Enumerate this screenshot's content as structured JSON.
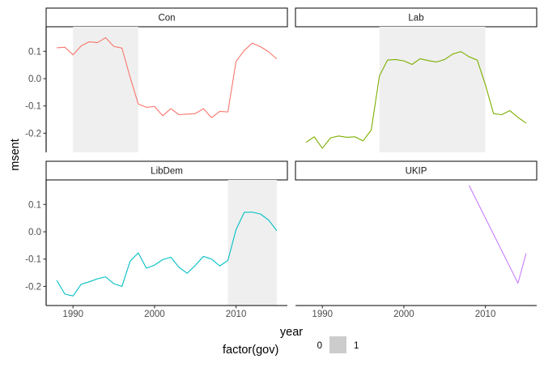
{
  "chart_data": {
    "type": "line",
    "xlabel": "year",
    "ylabel": "msent",
    "xlim": [
      1986.7,
      2016.3
    ],
    "ylim": [
      -0.27,
      0.19
    ],
    "x_ticks": [
      1990,
      2000,
      2010
    ],
    "x_tick_labels": [
      "1990",
      "2000",
      "2010"
    ],
    "y_ticks": [
      0.1,
      0.0,
      -0.1,
      -0.2
    ],
    "y_tick_labels": [
      "0.1",
      "0.0",
      "-0.1",
      "-0.2"
    ],
    "grid": false,
    "legend": {
      "title": "factor(gov)",
      "position": "bottom",
      "entries": [
        {
          "label": "0",
          "color": "#ffffff"
        },
        {
          "label": "1",
          "color": "#cccccc"
        }
      ]
    },
    "shade_color": "#efefef",
    "facets": [
      {
        "name": "Con",
        "color": "#f8766d",
        "gov_periods": [
          [
            1990,
            1998
          ]
        ],
        "x": [
          1988,
          1989,
          1990,
          1991,
          1992,
          1993,
          1994,
          1995,
          1996,
          1997,
          1998,
          1999,
          2000,
          2001,
          2002,
          2003,
          2004,
          2005,
          2006,
          2007,
          2008,
          2009,
          2010,
          2011,
          2012,
          2013,
          2014,
          2015
        ],
        "y": [
          0.113,
          0.115,
          0.087,
          0.12,
          0.135,
          0.132,
          0.15,
          0.118,
          0.112,
          0.005,
          -0.093,
          -0.105,
          -0.102,
          -0.136,
          -0.11,
          -0.132,
          -0.13,
          -0.128,
          -0.11,
          -0.143,
          -0.12,
          -0.122,
          0.063,
          0.103,
          0.13,
          0.117,
          0.098,
          0.072
        ]
      },
      {
        "name": "Lab",
        "color": "#7cae00",
        "gov_periods": [
          [
            1997,
            2010
          ]
        ],
        "x": [
          1988,
          1989,
          1990,
          1991,
          1992,
          1993,
          1994,
          1995,
          1996,
          1997,
          1998,
          1999,
          2000,
          2001,
          2002,
          2003,
          2004,
          2005,
          2006,
          2007,
          2008,
          2009,
          2010,
          2011,
          2012,
          2013,
          2014,
          2015
        ],
        "y": [
          -0.233,
          -0.213,
          -0.255,
          -0.217,
          -0.21,
          -0.215,
          -0.213,
          -0.228,
          -0.188,
          0.01,
          0.068,
          0.07,
          0.065,
          0.052,
          0.073,
          0.066,
          0.061,
          0.07,
          0.09,
          0.099,
          0.08,
          0.068,
          -0.022,
          -0.128,
          -0.132,
          -0.117,
          -0.142,
          -0.163
        ]
      },
      {
        "name": "LibDem",
        "color": "#00bfc4",
        "gov_periods": [
          [
            2009,
            2015
          ]
        ],
        "x": [
          1988,
          1989,
          1990,
          1991,
          1992,
          1993,
          1994,
          1995,
          1996,
          1997,
          1998,
          1999,
          2000,
          2001,
          2002,
          2003,
          2004,
          2005,
          2006,
          2007,
          2008,
          2009,
          2010,
          2011,
          2012,
          2013,
          2014,
          2015
        ],
        "y": [
          -0.178,
          -0.228,
          -0.235,
          -0.192,
          -0.183,
          -0.172,
          -0.165,
          -0.19,
          -0.2,
          -0.108,
          -0.077,
          -0.133,
          -0.122,
          -0.102,
          -0.093,
          -0.13,
          -0.152,
          -0.123,
          -0.09,
          -0.1,
          -0.125,
          -0.105,
          0.008,
          0.071,
          0.072,
          0.065,
          0.043,
          0.004
        ]
      },
      {
        "name": "UKIP",
        "color": "#c77cff",
        "gov_periods": [],
        "x": [
          2008,
          2014,
          2015
        ],
        "y": [
          0.17,
          -0.188,
          -0.079
        ]
      }
    ]
  }
}
